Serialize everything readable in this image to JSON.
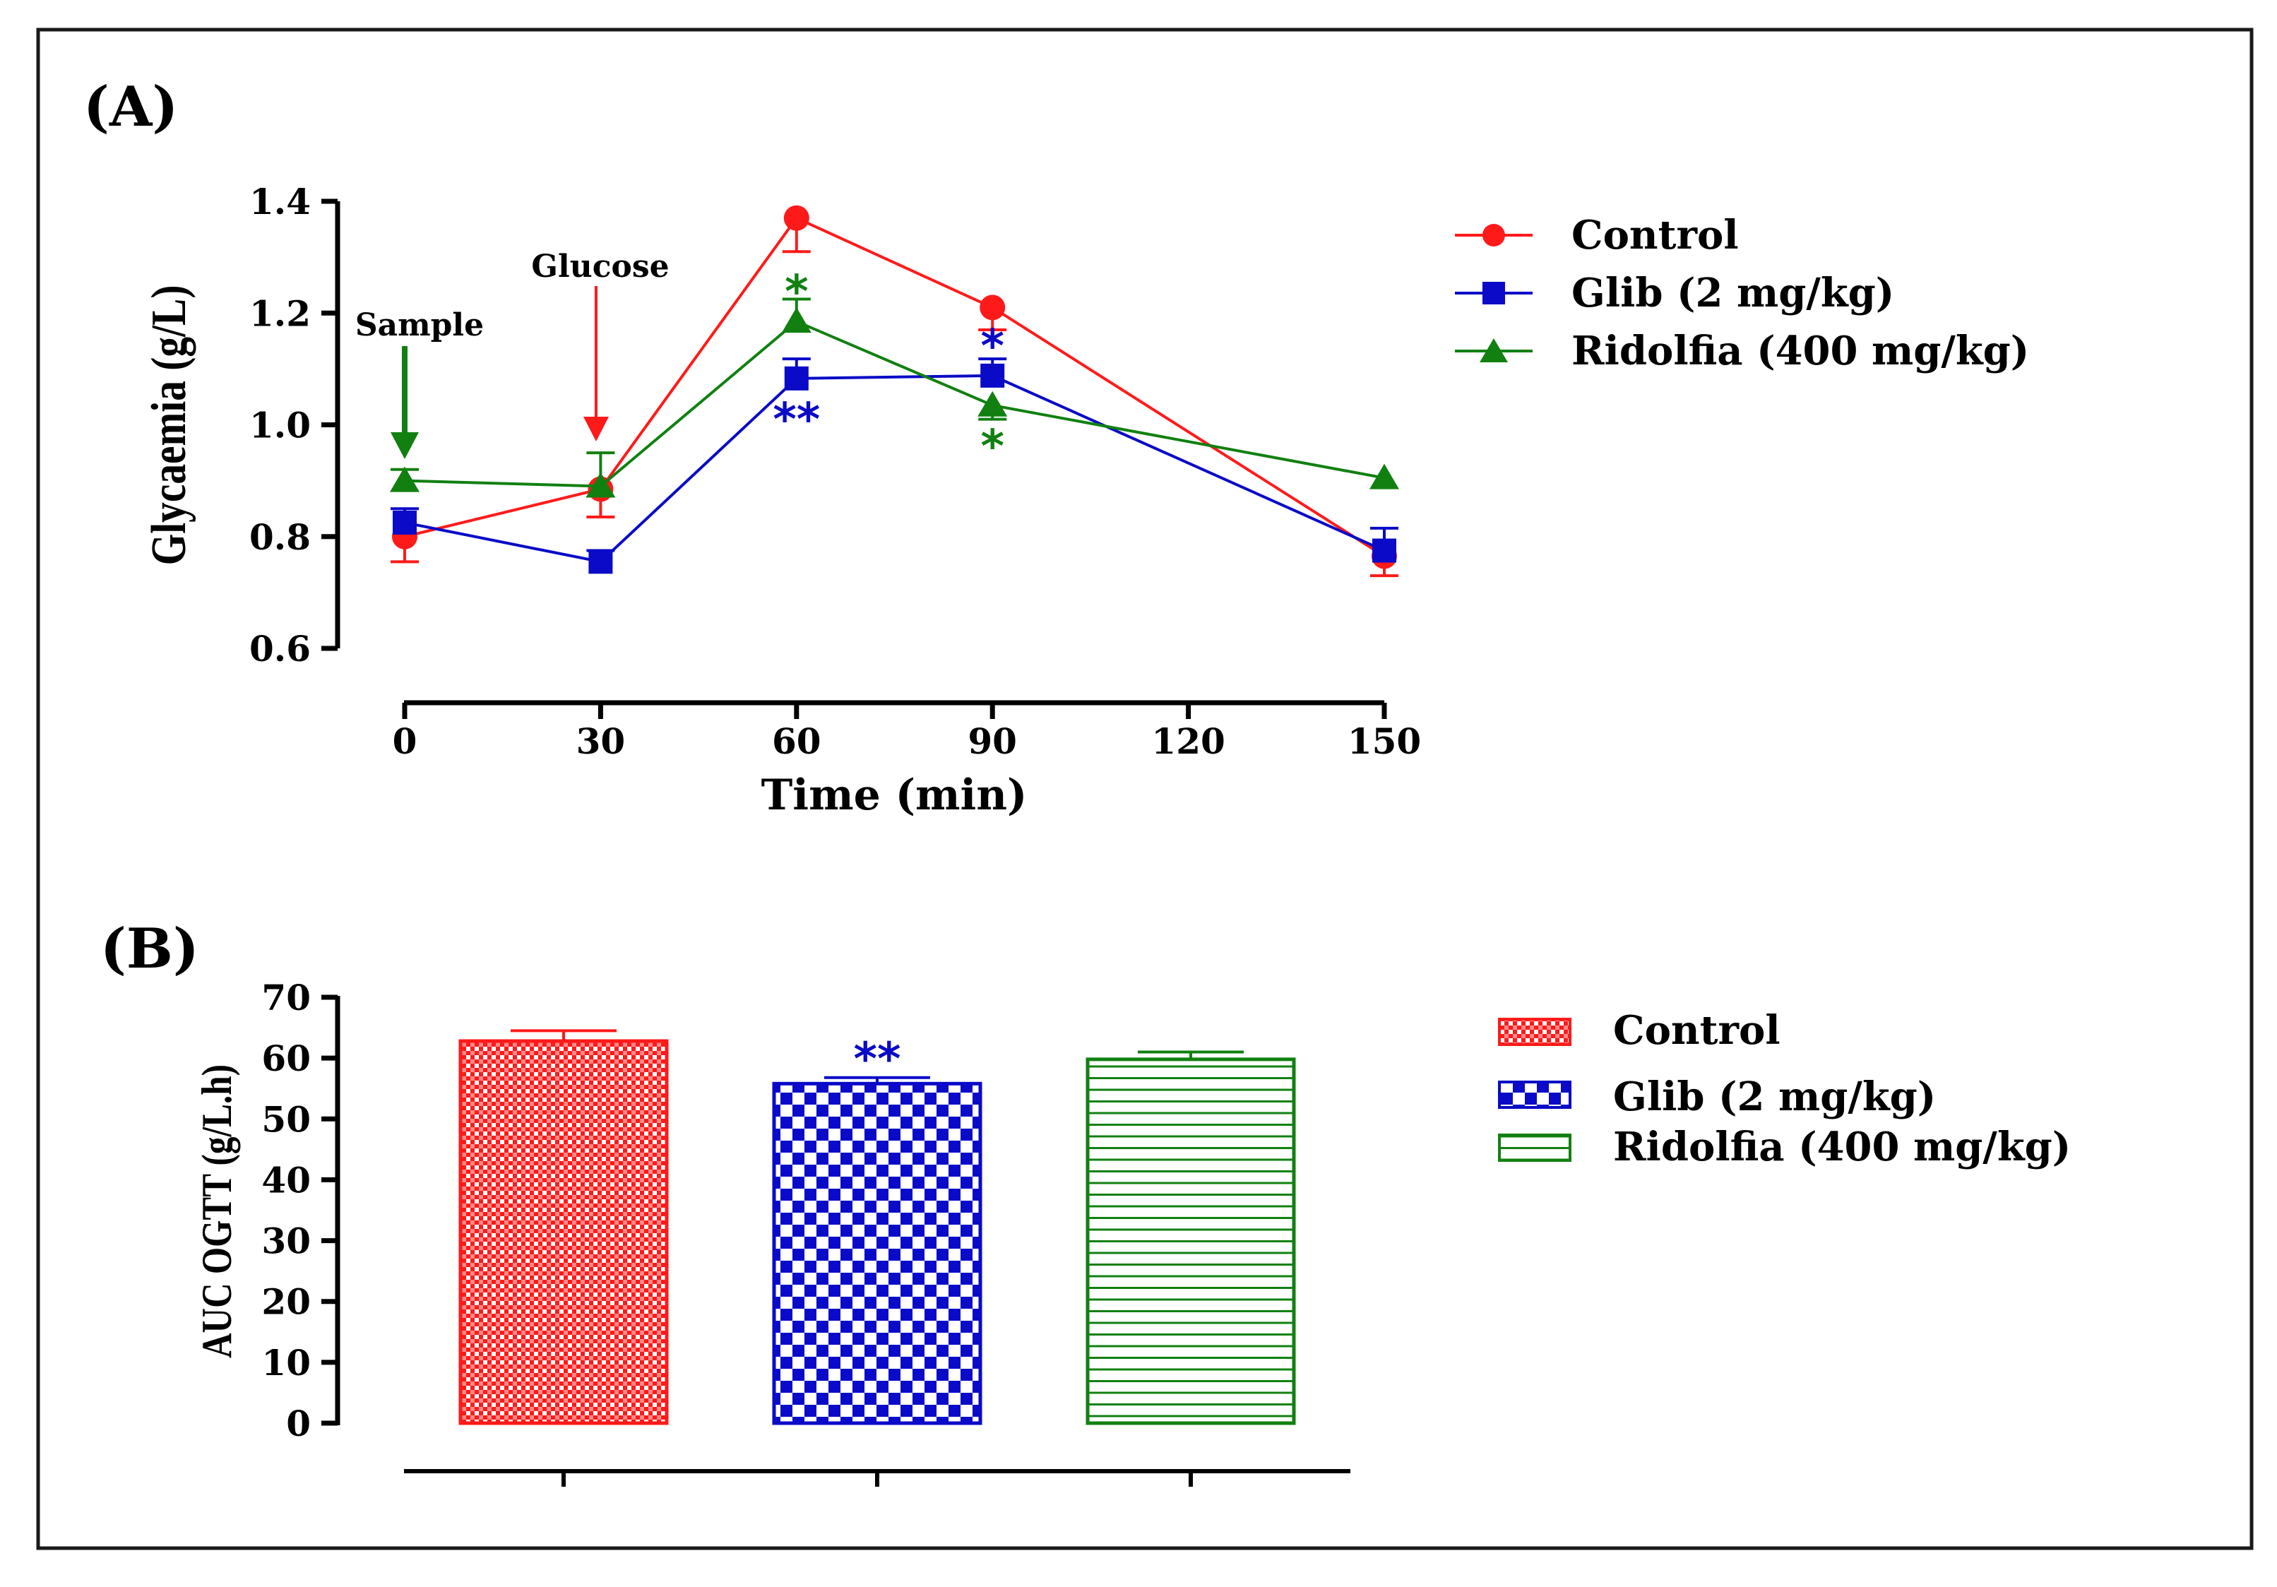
{
  "colors": {
    "control": "#ff1a1a",
    "glib": "#0a0ac8",
    "ridolfia": "#118011",
    "axis": "#000000",
    "frame": "#1a1a1a"
  },
  "chart_data": [
    {
      "panel": "(A)",
      "type": "line",
      "xlabel": "Time (min)",
      "ylabel": "Glycaemia (g/L)",
      "xlim": [
        0,
        150
      ],
      "ylim": [
        0.6,
        1.4
      ],
      "xticks": [
        "0",
        "30",
        "60",
        "90",
        "120",
        "150"
      ],
      "yticks": [
        "0.6",
        "0.8",
        "1.0",
        "1.2",
        "1.4"
      ],
      "grid": false,
      "legend_position": "right",
      "x": [
        0,
        30,
        60,
        90,
        150
      ],
      "series": [
        {
          "name": "Control",
          "marker": "circle",
          "color_key": "control",
          "values": [
            0.8,
            0.885,
            1.37,
            1.21,
            0.765
          ],
          "errors": [
            0.045,
            0.05,
            0.06,
            0.04,
            0.035
          ],
          "error_dir": [
            "down",
            "down",
            "down",
            "down",
            "down"
          ]
        },
        {
          "name": "Glib (2 mg/kg)",
          "marker": "square",
          "color_key": "glib",
          "values": [
            0.825,
            0.755,
            1.083,
            1.088,
            0.775
          ],
          "errors": [
            0.025,
            0.02,
            0.035,
            0.03,
            0.04
          ],
          "error_dir": [
            "up",
            "up",
            "up",
            "up",
            "up"
          ]
        },
        {
          "name": "Ridolfia (400 mg/kg)",
          "marker": "triangle",
          "color_key": "ridolfia",
          "values": [
            0.9,
            0.89,
            1.185,
            1.035,
            0.905
          ],
          "errors": [
            0.02,
            0.06,
            0.04,
            0.025,
            0.0
          ],
          "error_dir": [
            "up",
            "up",
            "up",
            "down",
            "up"
          ]
        }
      ],
      "annotations": [
        {
          "text": "Sample",
          "x": 0,
          "color_key": "ridolfia"
        },
        {
          "text": "Glucose",
          "x": 30,
          "color_key": "control"
        }
      ],
      "significance": [
        {
          "text": "*",
          "x": 60,
          "series": "Ridolfia (400 mg/kg)",
          "position": "above",
          "color_key": "ridolfia"
        },
        {
          "text": "**",
          "x": 60,
          "series": "Glib (2 mg/kg)",
          "position": "below",
          "color_key": "glib"
        },
        {
          "text": "*",
          "x": 90,
          "series": "Glib (2 mg/kg)",
          "position": "above",
          "color_key": "glib"
        },
        {
          "text": "*",
          "x": 90,
          "series": "Ridolfia (400 mg/kg)",
          "position": "below",
          "color_key": "ridolfia"
        }
      ]
    },
    {
      "panel": "(B)",
      "type": "bar",
      "ylabel": "AUC OGTT (g/L.h)",
      "xlabel": "",
      "ylim": [
        0,
        70
      ],
      "yticks": [
        "0",
        "10",
        "20",
        "30",
        "40",
        "50",
        "60",
        "70"
      ],
      "categories": [
        "Control",
        "Glib (2 mg/kg)",
        "Ridolfia (400 mg/kg)"
      ],
      "values": [
        62.8,
        55.8,
        59.8
      ],
      "errors": [
        1.7,
        1.0,
        1.2
      ],
      "patterns": [
        "fine-grid",
        "checker",
        "horizontal-lines"
      ],
      "color_keys": [
        "control",
        "glib",
        "ridolfia"
      ],
      "legend_position": "right",
      "significance": [
        {
          "text": "**",
          "category": "Glib (2 mg/kg)",
          "color_key": "glib"
        }
      ]
    }
  ]
}
